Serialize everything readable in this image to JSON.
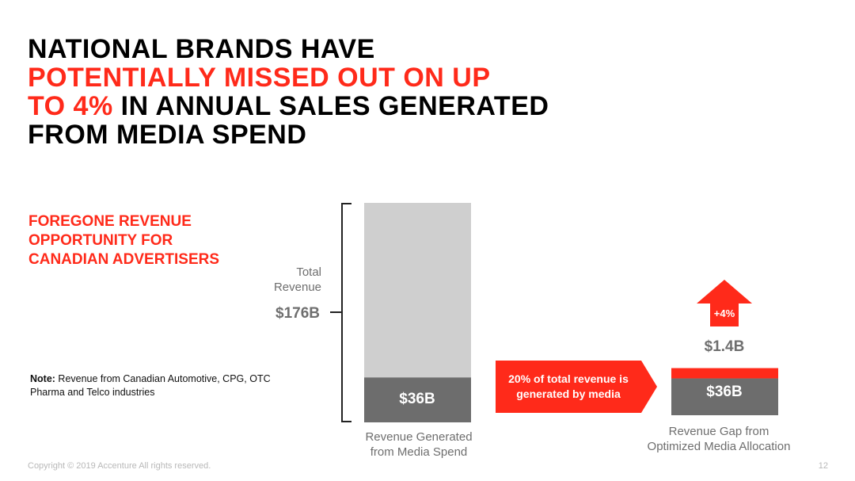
{
  "title": {
    "line1": "NATIONAL BRANDS HAVE",
    "line2_red": "POTENTIALLY MISSED OUT ON UP",
    "line3_red": "TO 4%",
    "line3_black": " IN ANNUAL SALES GENERATED",
    "line4": "FROM MEDIA SPEND"
  },
  "subtitle": [
    "FOREGONE REVENUE",
    "OPPORTUNITY FOR",
    "CANADIAN ADVERTISERS"
  ],
  "note": {
    "label": "Note:",
    "text": " Revenue from Canadian Automotive, CPG, OTC Pharma and Telco industries"
  },
  "footer": "Copyright © 2019 Accenture All rights reserved.",
  "page_number": "12",
  "colors": {
    "accent_red": "#ff2a1a",
    "bar_light_gray": "#cfcfcf",
    "bar_dark_gray": "#6d6d6d",
    "label_gray": "#6e6e6e"
  },
  "chart_data": {
    "type": "bar",
    "bars": [
      {
        "category": "Revenue Generated from Media Spend",
        "category_lines": [
          "Revenue Generated",
          "from Media Spend"
        ],
        "total": 176,
        "segments": [
          {
            "value": 36,
            "label": "$36B",
            "color": "#6d6d6d"
          },
          {
            "value": 140,
            "label": "",
            "color": "#cfcfcf"
          }
        ]
      },
      {
        "category": "Revenue Gap from Optimized Media Allocation",
        "category_lines": [
          "Revenue Gap from",
          "Optimized Media Allocation"
        ],
        "segments": [
          {
            "value": 36,
            "label": "$36B",
            "color": "#6d6d6d"
          },
          {
            "value": 1.4,
            "label": "$1.4B",
            "color": "#ff2a1a"
          }
        ]
      }
    ],
    "total_label_lines": [
      "Total",
      "Revenue"
    ],
    "total_value_label": "$176B",
    "callout_lines": [
      "20% of total revenue is",
      "generated by media"
    ],
    "uplift_label": "+4%"
  }
}
